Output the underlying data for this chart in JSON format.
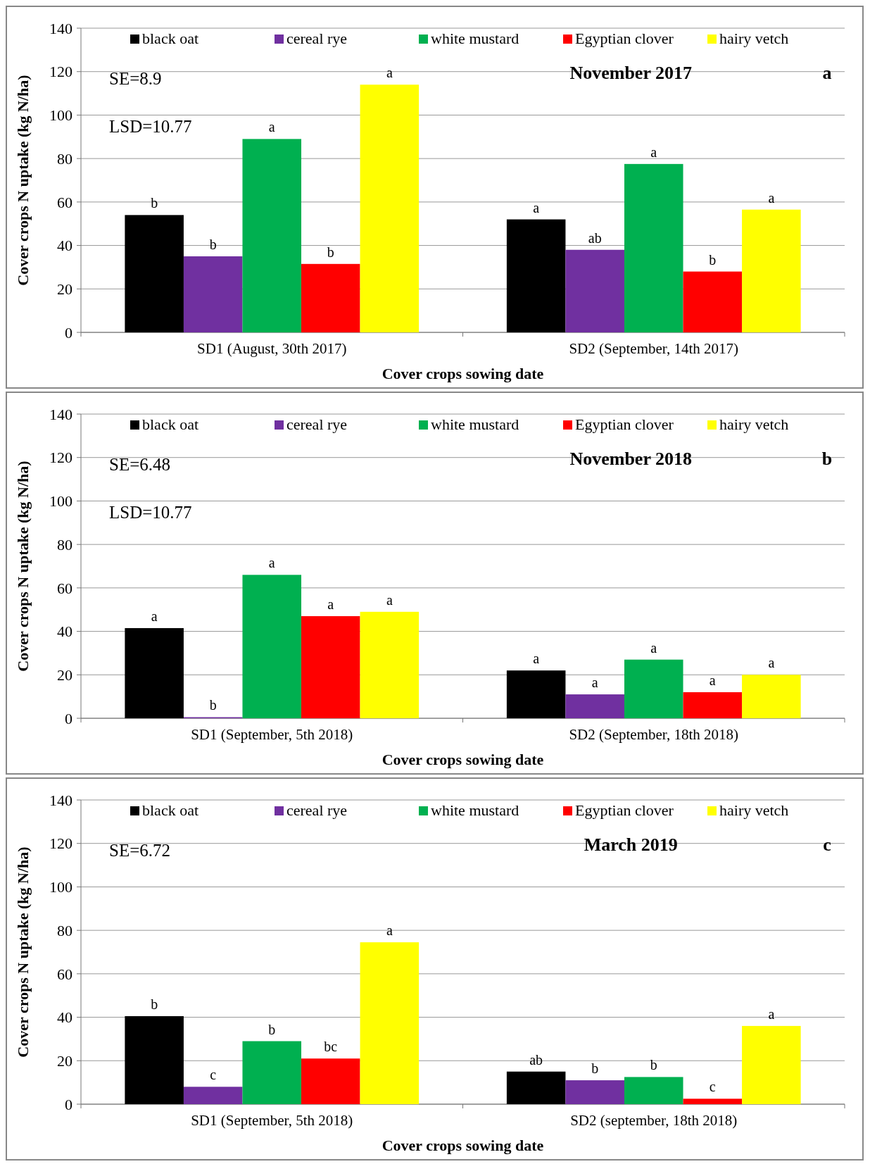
{
  "chart_data": [
    {
      "type": "bar",
      "title": "November 2017",
      "xlabel": "Cover crops sowing date",
      "ylabel": "Cover crops N uptake (kg N/ha)",
      "categories": [
        "SD1 (August, 30th 2017)",
        "SD2 (September, 14th 2017)"
      ],
      "ylim": [
        0,
        140
      ],
      "yticks": [
        0,
        20,
        40,
        60,
        80,
        100,
        120,
        140
      ],
      "grid": "y",
      "legend": "top",
      "annotations": [
        "SE=8.9",
        "LSD=10.77",
        "a"
      ],
      "series": [
        {
          "name": "black oat",
          "color": "#000000",
          "values": [
            54,
            52
          ],
          "value_labels": [
            "b",
            "a"
          ]
        },
        {
          "name": "cereal rye",
          "color": "#7030a0",
          "values": [
            35,
            38
          ],
          "value_labels": [
            "b",
            "ab"
          ]
        },
        {
          "name": "white mustard",
          "color": "#00b050",
          "values": [
            89,
            77.5
          ],
          "value_labels": [
            "a",
            "a"
          ]
        },
        {
          "name": "Egyptian clover",
          "color": "#ff0000",
          "values": [
            31.5,
            28
          ],
          "value_labels": [
            "b",
            "b"
          ]
        },
        {
          "name": "hairy vetch",
          "color": "#ffff00",
          "values": [
            114,
            56.5
          ],
          "value_labels": [
            "a",
            "a"
          ]
        }
      ]
    },
    {
      "type": "bar",
      "title": "November 2018",
      "xlabel": "Cover crops sowing date",
      "ylabel": "Cover crops N uptake (kg N/ha)",
      "categories": [
        "SD1 (September, 5th 2018)",
        "SD2 (September, 18th 2018)"
      ],
      "ylim": [
        0,
        140
      ],
      "yticks": [
        0,
        20,
        40,
        60,
        80,
        100,
        120,
        140
      ],
      "grid": "y",
      "legend": "top",
      "annotations": [
        "SE=6.48",
        "LSD=10.77",
        "b"
      ],
      "series": [
        {
          "name": "black oat",
          "color": "#000000",
          "values": [
            41.5,
            22
          ],
          "value_labels": [
            "a",
            "a"
          ]
        },
        {
          "name": "cereal rye",
          "color": "#7030a0",
          "values": [
            0.5,
            11
          ],
          "value_labels": [
            "b",
            "a"
          ]
        },
        {
          "name": "white mustard",
          "color": "#00b050",
          "values": [
            66,
            27
          ],
          "value_labels": [
            "a",
            "a"
          ]
        },
        {
          "name": "Egyptian clover",
          "color": "#ff0000",
          "values": [
            47,
            12
          ],
          "value_labels": [
            "a",
            "a"
          ]
        },
        {
          "name": "hairy vetch",
          "color": "#ffff00",
          "values": [
            49,
            20
          ],
          "value_labels": [
            "a",
            "a"
          ]
        }
      ]
    },
    {
      "type": "bar",
      "title": "March 2019",
      "xlabel": "Cover crops sowing date",
      "ylabel": "Cover crops N uptake (kg N/ha)",
      "categories": [
        "SD1 (September, 5th 2018)",
        "SD2 (september, 18th 2018)"
      ],
      "ylim": [
        0,
        140
      ],
      "yticks": [
        0,
        20,
        40,
        60,
        80,
        100,
        120,
        140
      ],
      "grid": "y",
      "legend": "top",
      "annotations": [
        "SE=6.72",
        "c"
      ],
      "series": [
        {
          "name": "black oat",
          "color": "#000000",
          "values": [
            40.5,
            15
          ],
          "value_labels": [
            "b",
            "ab"
          ]
        },
        {
          "name": "cereal rye",
          "color": "#7030a0",
          "values": [
            8,
            11
          ],
          "value_labels": [
            "c",
            "b"
          ]
        },
        {
          "name": "white mustard",
          "color": "#00b050",
          "values": [
            29,
            12.5
          ],
          "value_labels": [
            "b",
            "b"
          ]
        },
        {
          "name": "Egyptian clover",
          "color": "#ff0000",
          "values": [
            21,
            2.5
          ],
          "value_labels": [
            "bc",
            "c"
          ]
        },
        {
          "name": "hairy vetch",
          "color": "#ffff00",
          "values": [
            74.5,
            36
          ],
          "value_labels": [
            "a",
            "a"
          ]
        }
      ]
    }
  ]
}
